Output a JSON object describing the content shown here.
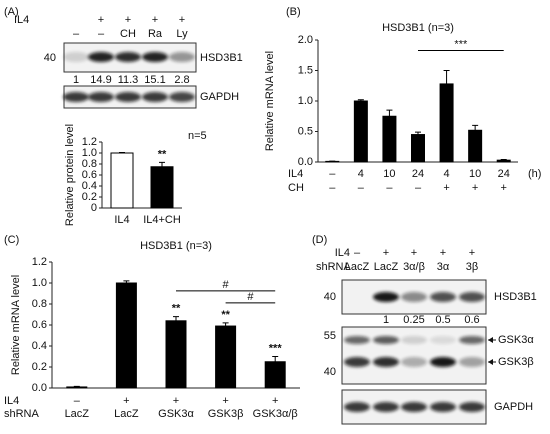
{
  "panel_labels": [
    "(A)",
    "(B)",
    "(C)",
    "(D)"
  ],
  "panel_A_blot": {
    "il4_label": "IL4",
    "il4": [
      "–",
      "+",
      "+",
      "+",
      "+"
    ],
    "treatment": [
      null,
      "–",
      "CH",
      "Ra",
      "Ly"
    ],
    "marker": 40,
    "hsd_label": "HSD3B1",
    "quant": [
      1,
      14.9,
      11.3,
      15.1,
      2.8
    ],
    "gapdh_label": "GAPDH"
  },
  "panel_D_blot": {
    "il4_label": "IL4",
    "il4": [
      "–",
      "+",
      "+",
      "+",
      "+"
    ],
    "shrna_label": "shRNA",
    "shrna": [
      "LacZ",
      "LacZ",
      "3α/β",
      "3α",
      "3β"
    ],
    "markers": [
      40,
      55,
      40
    ],
    "labels": [
      "HSD3B1",
      "GSK3α",
      "GSK3β",
      "GAPDH"
    ],
    "quant": [
      null,
      1,
      0.25,
      0.5,
      0.6
    ]
  },
  "chart_data": [
    {
      "type": "bar",
      "y_label": "Relative protein level",
      "annotation": "n=5",
      "category_rows": [
        {
          "labels": [
            "IL4",
            "IL4+CH"
          ]
        }
      ],
      "values": [
        1.0,
        0.75
      ],
      "errors": [
        0.01,
        0.08
      ],
      "colors": [
        "#ffffff",
        "#000000"
      ],
      "bar_annotations": [
        null,
        "**"
      ],
      "ylim": [
        0,
        1.2
      ],
      "yticks": [
        0,
        0.2,
        0.4,
        0.6,
        0.8,
        {
          "value": 1,
          "label": "1.0"
        },
        1.2
      ]
    },
    {
      "type": "bar",
      "title": "HSD3B1 (n=3)",
      "y_label": "Relative mRNA level",
      "category_rows": [
        {
          "name": "IL4",
          "labels": [
            "–",
            "4",
            "10",
            "24",
            "4",
            "10",
            "24"
          ],
          "unit": "(h)"
        },
        {
          "name": "CH",
          "labels": [
            "–",
            "–",
            "–",
            "–",
            "+",
            "+",
            "+"
          ]
        }
      ],
      "values": [
        0.01,
        1.0,
        0.75,
        0.45,
        1.28,
        0.52,
        0.03
      ],
      "errors": [
        0.005,
        0.02,
        0.1,
        0.04,
        0.22,
        0.08,
        0.01
      ],
      "color": "#000000",
      "brackets": [
        {
          "from": 3,
          "to": 6,
          "label": "***"
        }
      ],
      "ylim": [
        0,
        2
      ],
      "yticks": [
        {
          "value": 0,
          "label": "0.0"
        },
        0.5,
        {
          "value": 1,
          "label": "1.0"
        },
        1.5,
        {
          "value": 2,
          "label": "2.0"
        }
      ]
    },
    {
      "type": "bar",
      "title": "HSD3B1 (n=3)",
      "y_label": "Relative mRNA level",
      "category_rows": [
        {
          "name": "IL4",
          "labels": [
            "–",
            "+",
            "+",
            "+",
            "+"
          ]
        },
        {
          "name": "shRNA",
          "labels": [
            "LacZ",
            "LacZ",
            "GSK3α",
            "GSK3β",
            "GSK3α/β"
          ]
        }
      ],
      "values": [
        0.01,
        1.0,
        0.64,
        0.59,
        0.25
      ],
      "errors": [
        0.005,
        0.02,
        0.04,
        0.03,
        0.05
      ],
      "color": "#000000",
      "bar_annotations": [
        null,
        null,
        "**",
        "**",
        "***"
      ],
      "brackets": [
        {
          "from": 3,
          "to": 4,
          "label": "#"
        },
        {
          "from": 2,
          "to": 4,
          "label": "#"
        }
      ],
      "ylim": [
        0,
        1.2
      ],
      "yticks": [
        {
          "value": 0,
          "label": "0.0"
        },
        0.2,
        0.4,
        0.6,
        0.8,
        {
          "value": 1,
          "label": "1.0"
        },
        1.2
      ]
    }
  ]
}
